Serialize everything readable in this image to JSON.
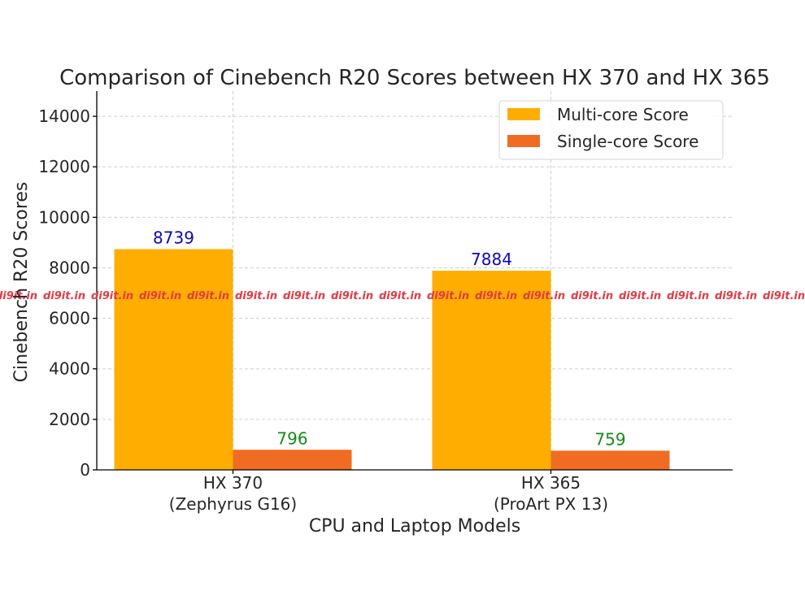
{
  "chart_data": {
    "type": "bar",
    "title": "Comparison of Cinebench R20 Scores between HX 370 and HX 365",
    "xlabel": "CPU and Laptop Models",
    "ylabel": "Cinebench R20 Scores",
    "categories": [
      "HX 370\n(Zephyrus G16)",
      "HX 365\n(ProArt PX 13)"
    ],
    "ylim": [
      0,
      15000
    ],
    "yticks": [
      0,
      2000,
      4000,
      6000,
      8000,
      10000,
      12000,
      14000
    ],
    "grid": true,
    "legend_position": "top-right",
    "series": [
      {
        "name": "Multi-core Score",
        "values": [
          8739,
          7884
        ],
        "color": "#FFAE00",
        "label_color": "#0A0AB4"
      },
      {
        "name": "Single-core Score",
        "values": [
          796,
          759
        ],
        "color": "#F06C23",
        "label_color": "#178A17"
      }
    ]
  },
  "watermark": "di9it.in"
}
